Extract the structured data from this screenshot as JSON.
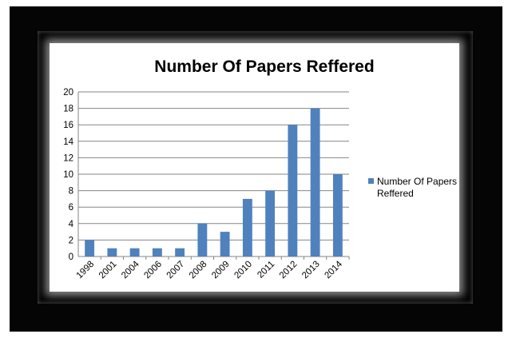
{
  "chart_data": {
    "type": "bar",
    "title": "Number Of Papers Reffered",
    "xlabel": "",
    "ylabel": "",
    "categories": [
      "1998",
      "2001",
      "2004",
      "2006",
      "2007",
      "2008",
      "2009",
      "2010",
      "2011",
      "2012",
      "2013",
      "2014"
    ],
    "series": [
      {
        "name": "Number Of Papers Reffered",
        "values": [
          2,
          1,
          1,
          1,
          1,
          4,
          3,
          7,
          8,
          16,
          18,
          10
        ],
        "color": "#4F81BD"
      }
    ],
    "ylim": [
      0,
      20
    ],
    "yticks": [
      "0",
      "2",
      "4",
      "6",
      "8",
      "10",
      "12",
      "14",
      "16",
      "18",
      "20"
    ],
    "grid": true,
    "legend": "right"
  }
}
